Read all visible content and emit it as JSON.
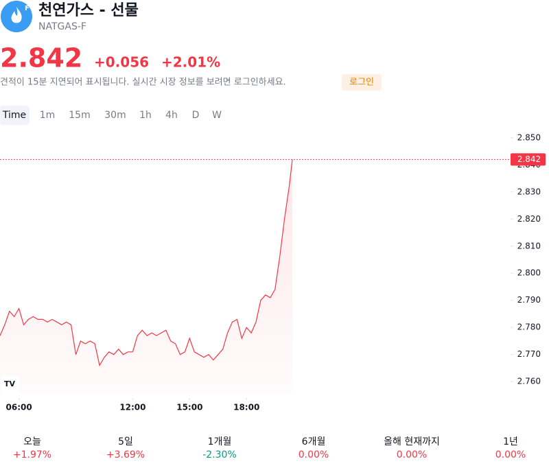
{
  "header": {
    "title": "천연가스 - 선물",
    "symbol": "NATGAS-F"
  },
  "quote": {
    "price": 2.842,
    "change": "+0.056",
    "change_percent": "+2.01%"
  },
  "notice": {
    "text": "견적이 15분 지연되어 표시됩니다. 실시간 시장 정보를 보려면 로그인하세요.",
    "button": "로그인"
  },
  "tabs": [
    "Time",
    "1m",
    "15m",
    "30m",
    "1h",
    "4h",
    "D",
    "W"
  ],
  "chart_data": {
    "type": "line",
    "color": "#f23645",
    "x": [
      "05:00",
      "05:15",
      "05:30",
      "05:45",
      "06:00",
      "06:15",
      "06:30",
      "06:45",
      "07:00",
      "07:15",
      "07:30",
      "07:45",
      "08:00",
      "08:15",
      "08:30",
      "08:45",
      "09:00",
      "09:15",
      "09:30",
      "09:45",
      "10:00",
      "10:15",
      "10:30",
      "10:45",
      "11:00",
      "11:15",
      "11:30",
      "11:45",
      "12:00",
      "12:15",
      "12:30",
      "12:45",
      "13:00",
      "13:15",
      "13:30",
      "13:45",
      "14:00",
      "14:15",
      "14:30",
      "14:45",
      "15:00",
      "15:15",
      "15:30",
      "15:45",
      "16:00",
      "16:15",
      "16:30",
      "16:45",
      "17:00",
      "17:15",
      "17:30",
      "17:45",
      "18:00",
      "18:15",
      "18:30",
      "18:45",
      "19:00",
      "19:15",
      "19:30",
      "19:45",
      "20:00",
      "20:15",
      "20:25"
    ],
    "values": [
      2.777,
      2.781,
      2.786,
      2.784,
      2.787,
      2.781,
      2.783,
      2.784,
      2.783,
      2.783,
      2.782,
      2.783,
      2.782,
      2.781,
      2.782,
      2.781,
      2.77,
      2.775,
      2.774,
      2.775,
      2.774,
      2.766,
      2.769,
      2.771,
      2.77,
      2.772,
      2.77,
      2.771,
      2.771,
      2.777,
      2.779,
      2.777,
      2.778,
      2.777,
      2.778,
      2.779,
      2.775,
      2.774,
      2.77,
      2.771,
      2.776,
      2.771,
      2.77,
      2.769,
      2.77,
      2.768,
      2.77,
      2.772,
      2.778,
      2.782,
      2.783,
      2.776,
      2.78,
      2.778,
      2.782,
      2.79,
      2.792,
      2.791,
      2.794,
      2.806,
      2.82,
      2.832,
      2.842
    ],
    "xlim": [
      "05:00",
      "20:25"
    ],
    "xticks": [
      "06:00",
      "12:00",
      "15:00",
      "18:00"
    ],
    "ylim": [
      2.756,
      2.854
    ],
    "yticks": [
      {
        "value": 2.85,
        "label": "2.850"
      },
      {
        "value": 2.84,
        "label": "2.840"
      },
      {
        "value": 2.83,
        "label": "2.830"
      },
      {
        "value": 2.82,
        "label": "2.820"
      },
      {
        "value": 2.81,
        "label": "2.810"
      },
      {
        "value": 2.8,
        "label": "2.800"
      },
      {
        "value": 2.79,
        "label": "2.790"
      },
      {
        "value": 2.78,
        "label": "2.780"
      },
      {
        "value": 2.77,
        "label": "2.770"
      },
      {
        "value": 2.76,
        "label": "2.760"
      }
    ]
  },
  "performance": [
    {
      "label": "오늘",
      "value": "+1.97%"
    },
    {
      "label": "5일",
      "value": "+3.69%"
    },
    {
      "label": "1개월",
      "value": "-2.30%"
    },
    {
      "label": "6개월",
      "value": "0.00%"
    },
    {
      "label": "올해 현재까지",
      "value": "0.00%"
    },
    {
      "label": "1년",
      "value": "0.00%"
    }
  ]
}
